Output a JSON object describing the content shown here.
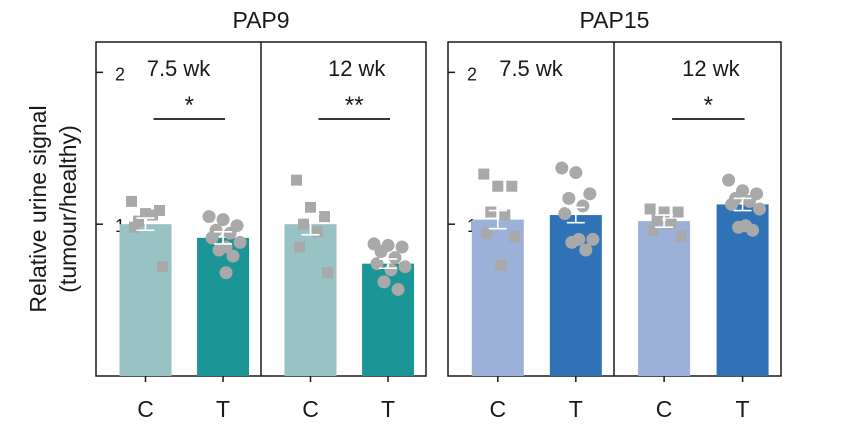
{
  "chart_data": {
    "type": "bar",
    "ylabel_lines": [
      "Relative urine signal",
      "(tumour/healthy)"
    ],
    "ylim": [
      0,
      2.2
    ],
    "yticks": [
      1,
      2
    ],
    "colors": {
      "PAP9": {
        "C": "#99c2c4",
        "T": "#1c9597"
      },
      "PAP15": {
        "C": "#9cb1d7",
        "T": "#3072b6"
      },
      "points": "#a9a9a9",
      "frame": "#1a1a1a"
    },
    "panels": [
      {
        "title": "PAP9",
        "groups": [
          {
            "label": "7.5 wk",
            "significance": "*",
            "bars": [
              {
                "category": "C",
                "value": 1.0,
                "sem": 0.04,
                "marker": "square",
                "points": [
                  1.15,
                  1.07,
                  1.09,
                  1.02,
                  1.06,
                  0.98,
                  0.72
                ]
              },
              {
                "category": "T",
                "value": 0.91,
                "sem": 0.04,
                "marker": "circle",
                "points": [
                  1.05,
                  1.03,
                  0.99,
                  0.96,
                  0.94,
                  0.91,
                  0.88,
                  0.85,
                  0.83,
                  0.79,
                  0.68
                ]
              }
            ]
          },
          {
            "label": "12 wk",
            "significance": "**",
            "bars": [
              {
                "category": "C",
                "value": 1.0,
                "sem": 0.07,
                "marker": "square",
                "points": [
                  1.29,
                  1.11,
                  1.05,
                  1.0,
                  0.95,
                  0.85,
                  0.68
                ]
              },
              {
                "category": "T",
                "value": 0.74,
                "sem": 0.03,
                "marker": "circle",
                "points": [
                  0.87,
                  0.86,
                  0.85,
                  0.82,
                  0.78,
                  0.74,
                  0.72,
                  0.7,
                  0.62,
                  0.57
                ]
              }
            ]
          }
        ]
      },
      {
        "title": "PAP15",
        "groups": [
          {
            "label": "7.5 wk",
            "significance": "",
            "bars": [
              {
                "category": "C",
                "value": 1.03,
                "sem": 0.06,
                "marker": "square",
                "points": [
                  1.33,
                  1.25,
                  1.25,
                  1.08,
                  1.06,
                  0.94,
                  0.92,
                  0.73
                ]
              },
              {
                "category": "T",
                "value": 1.06,
                "sem": 0.05,
                "marker": "circle",
                "points": [
                  1.37,
                  1.34,
                  1.2,
                  1.17,
                  1.12,
                  1.07,
                  0.9,
                  0.9,
                  0.88,
                  0.83
                ]
              }
            ]
          },
          {
            "label": "12 wk",
            "significance": "*",
            "bars": [
              {
                "category": "C",
                "value": 1.02,
                "sem": 0.04,
                "marker": "square",
                "points": [
                  1.1,
                  1.08,
                  1.08,
                  1.03,
                  1.0,
                  0.96,
                  0.92
                ]
              },
              {
                "category": "T",
                "value": 1.13,
                "sem": 0.04,
                "marker": "circle",
                "points": [
                  1.29,
                  1.22,
                  1.2,
                  1.17,
                  1.15,
                  1.13,
                  1.1,
                  0.99,
                  0.98,
                  0.96
                ]
              }
            ]
          }
        ]
      }
    ]
  }
}
